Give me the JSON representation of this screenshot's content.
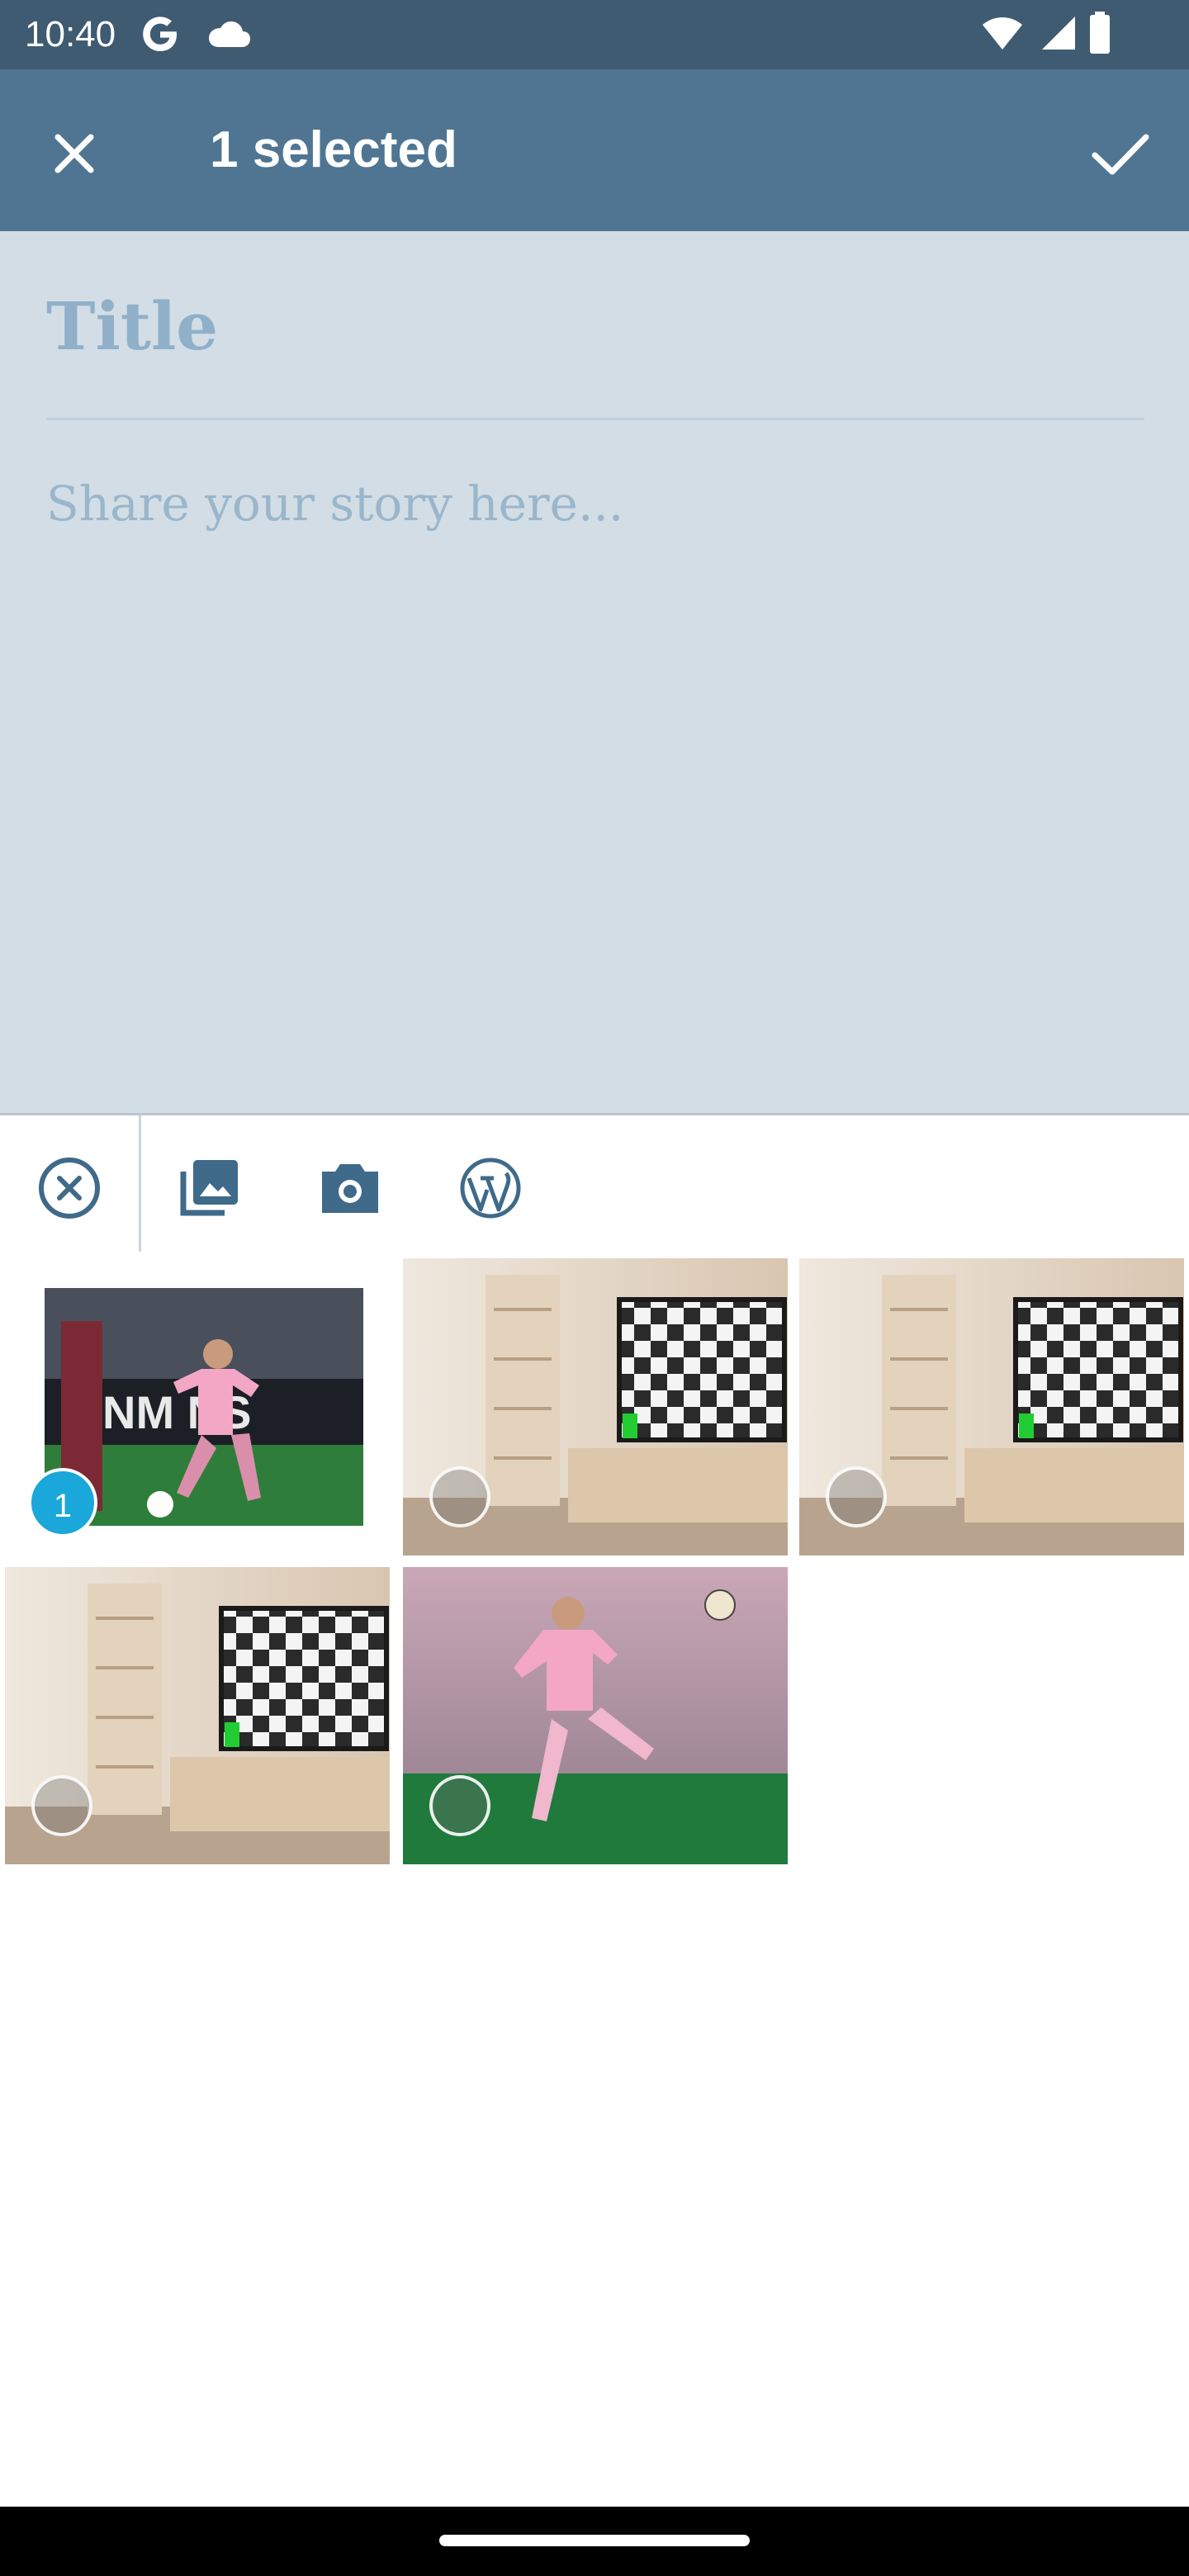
{
  "status_bar": {
    "time": "10:40",
    "icons": [
      "google-g-icon",
      "cloud-icon",
      "wifi-icon",
      "signal-icon",
      "battery-icon"
    ]
  },
  "app_bar": {
    "title": "1 selected",
    "close_icon": "close-icon",
    "confirm_icon": "check-icon"
  },
  "editor": {
    "title_placeholder": "Title",
    "story_placeholder": "Share your story here..."
  },
  "toolbar": {
    "items": [
      "cancel-circle-icon",
      "gallery-icon",
      "camera-icon",
      "wordpress-icon"
    ]
  },
  "media_grid": {
    "items": [
      {
        "image": "soccer-player-pink-kit-kicking",
        "selected": true,
        "badge": "1"
      },
      {
        "image": "living-room-tv-checkerboard",
        "selected": false
      },
      {
        "image": "living-room-tv-checkerboard",
        "selected": false
      },
      {
        "image": "living-room-tv-checkerboard",
        "selected": false
      },
      {
        "image": "soccer-player-pink-kit-volley",
        "selected": false
      }
    ]
  },
  "colors": {
    "status_bar": "#3f5b72",
    "app_bar": "#4f7592",
    "editor_bg": "#d2dde6",
    "placeholder": "#8fb0c8",
    "badge": "#1aa7da"
  }
}
